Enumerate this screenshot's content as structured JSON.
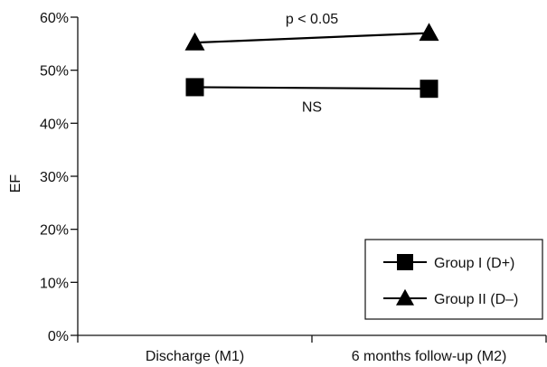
{
  "chart_data": {
    "type": "line",
    "title": "",
    "xlabel": "",
    "ylabel": "EF",
    "categories": [
      "Discharge (M1)",
      "6 months follow-up (M2)"
    ],
    "ylim": [
      0,
      60
    ],
    "yticks": [
      "0%",
      "10%",
      "20%",
      "30%",
      "40%",
      "50%",
      "60%"
    ],
    "grid": false,
    "legend_position": "bottom-right",
    "series": [
      {
        "name": "Group I (D+)",
        "marker": "square",
        "color": "#000000",
        "values": [
          46.8,
          46.5
        ],
        "annotation": "NS"
      },
      {
        "name": "Group II (D–)",
        "marker": "triangle",
        "color": "#000000",
        "values": [
          55.2,
          57.0
        ],
        "annotation": "p < 0.05"
      }
    ]
  }
}
